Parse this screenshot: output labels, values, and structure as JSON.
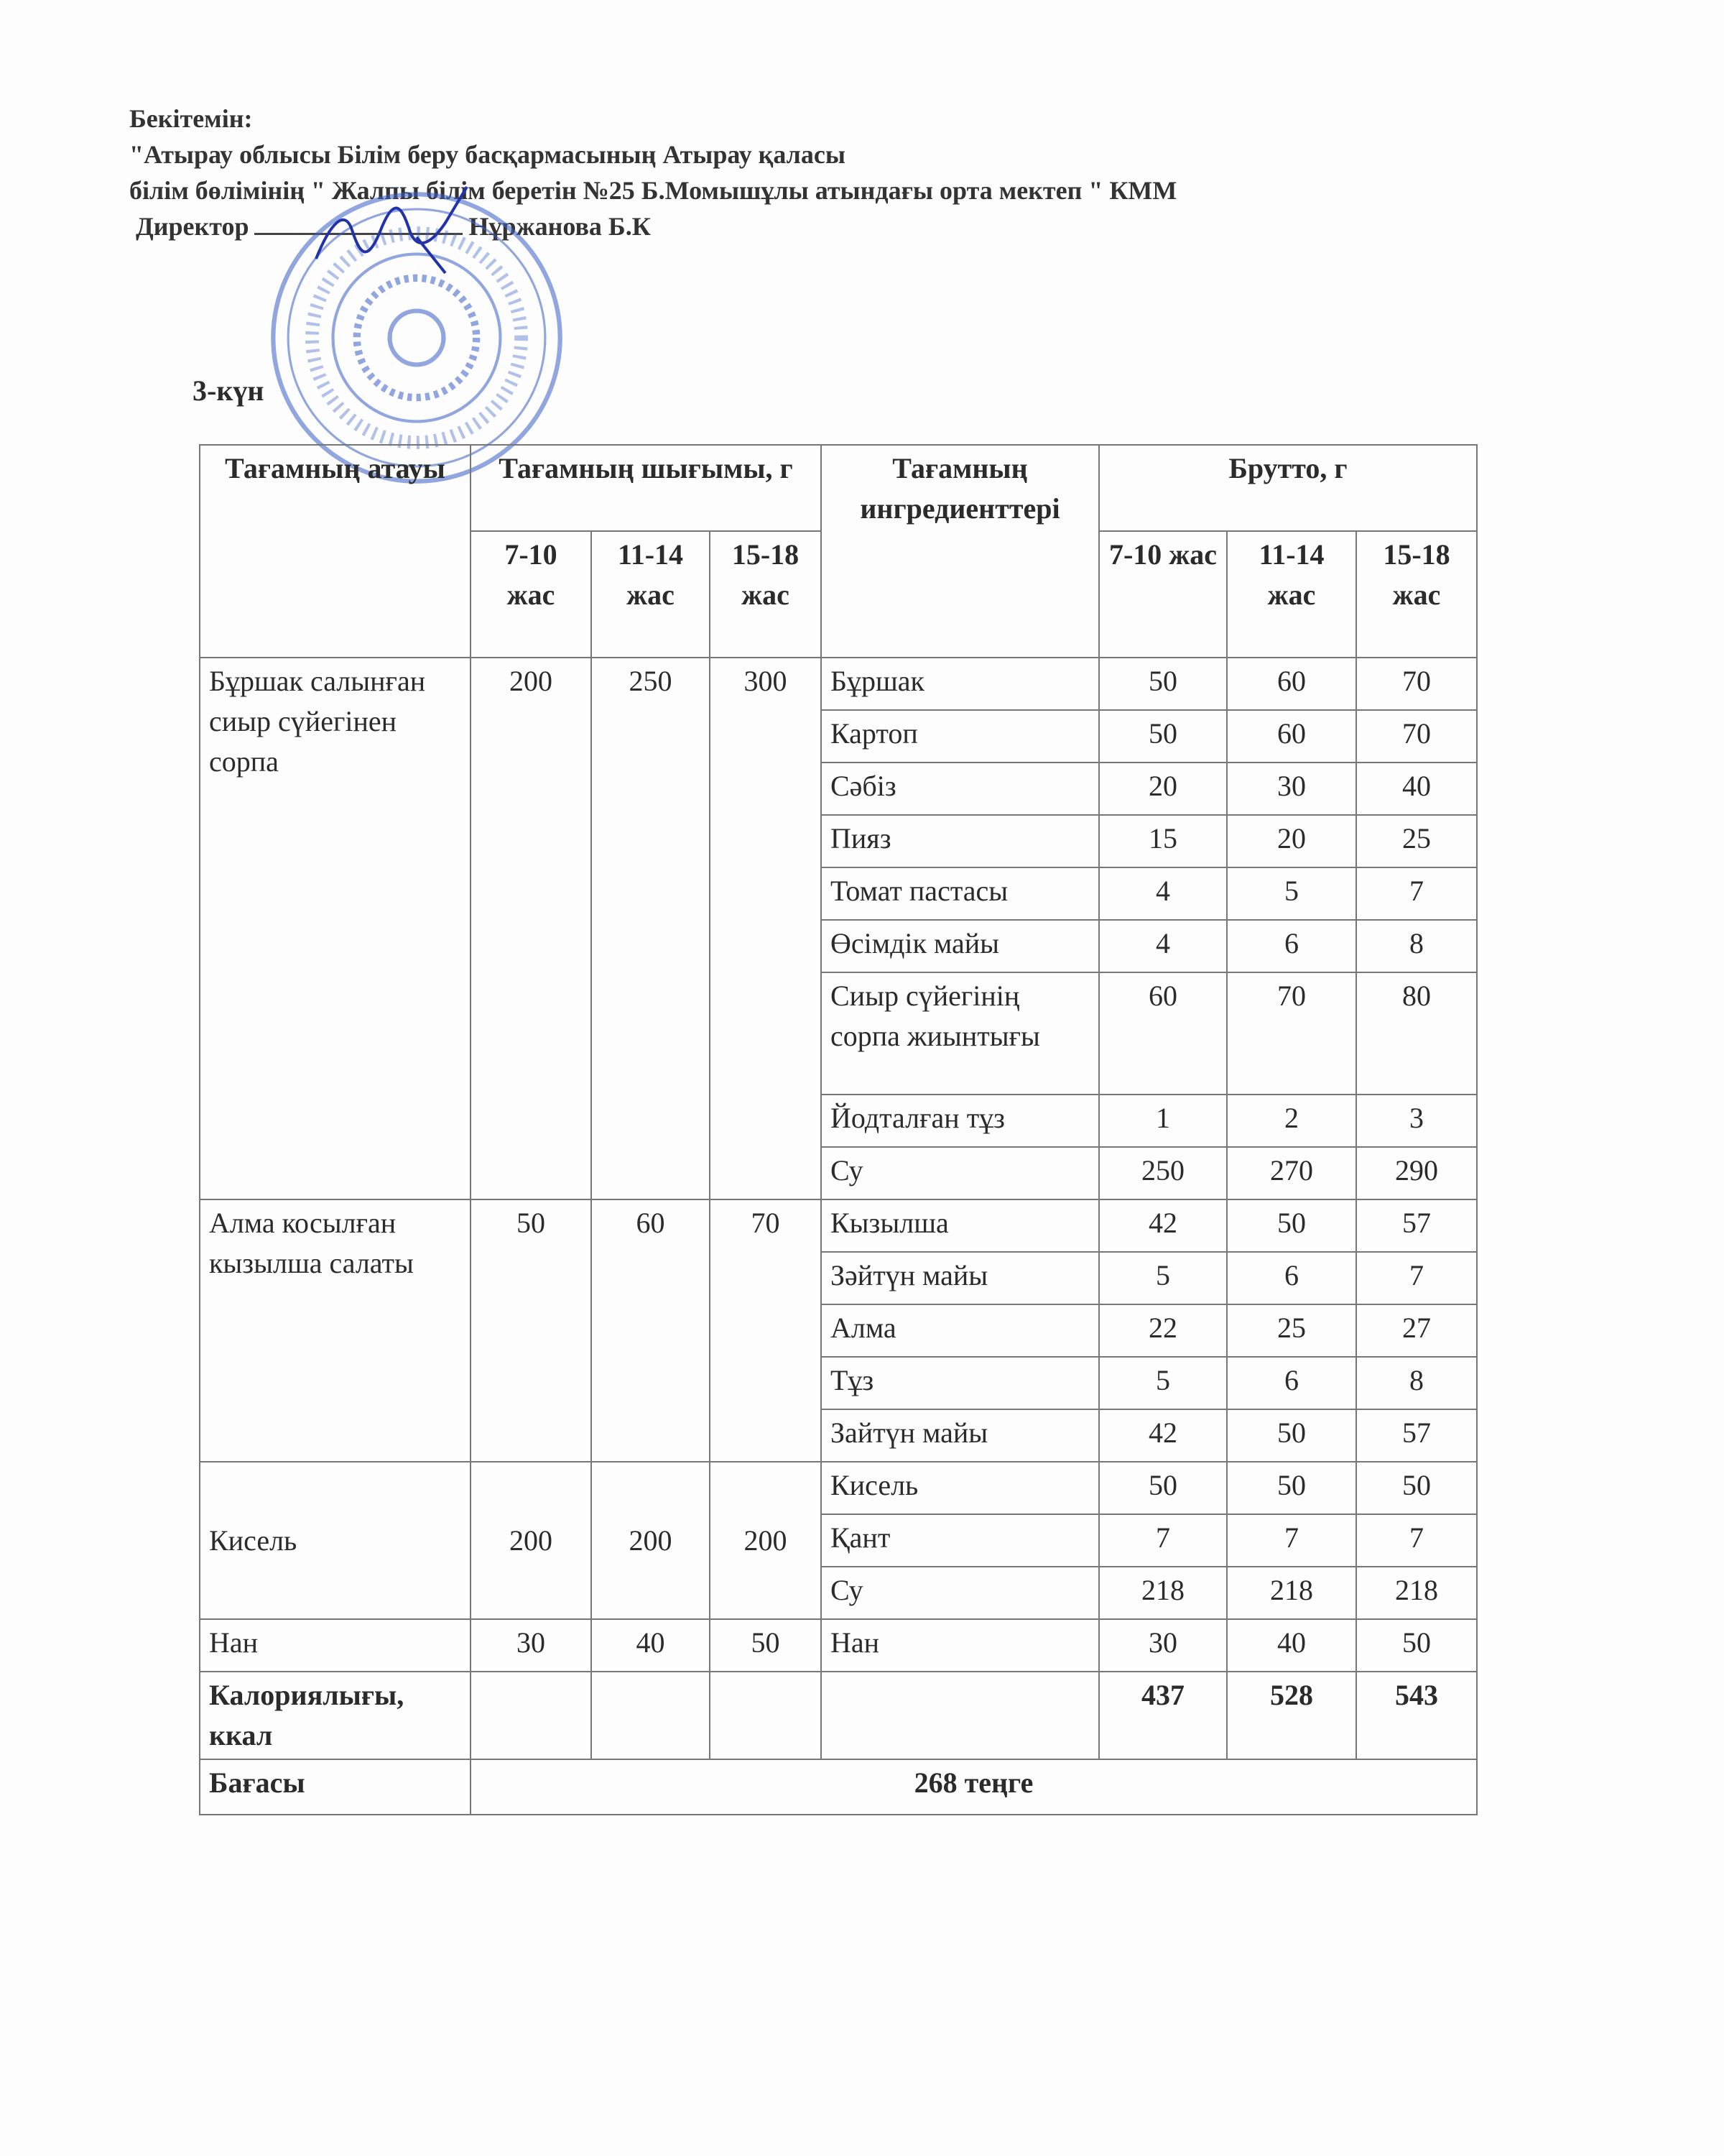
{
  "header": {
    "approve": "Бекітемін:",
    "line1": "\"Атырау облысы Білім беру басқармасының Атырау қаласы",
    "line2": "білім бөлімінің \" Жалпы білім беретін №25 Б.Момышұлы атындағы орта мектеп \" КММ",
    "director_label": "Директор",
    "director_name": "Нұржанова Б.К"
  },
  "day": "3-күн",
  "table": {
    "col_dish": "Тағамның атауы",
    "col_yield": "Тағамның шығымы, г",
    "col_ingredients": "Тағамның ингредиенттері",
    "col_brutto": "Брутто, г",
    "yield_ages": [
      "7-10 жас",
      "11-14 жас",
      "15-18 жас"
    ],
    "brutto_ages": [
      "7-10 жас",
      "11-14 жас",
      "15-18 жас"
    ],
    "dishes": [
      {
        "name": "Бұршак салынған сиыр сүйегінен сорпа",
        "yield": [
          "200",
          "250",
          "300"
        ],
        "ingredients": [
          {
            "name": "Бұршак",
            "v": [
              "50",
              "60",
              "70"
            ]
          },
          {
            "name": "Картоп",
            "v": [
              "50",
              "60",
              "70"
            ]
          },
          {
            "name": "Сәбіз",
            "v": [
              "20",
              "30",
              "40"
            ]
          },
          {
            "name": "Пияз",
            "v": [
              "15",
              "20",
              "25"
            ]
          },
          {
            "name": "Томат пастасы",
            "v": [
              "4",
              "5",
              "7"
            ]
          },
          {
            "name": "Өсімдік майы",
            "v": [
              "4",
              "6",
              "8"
            ]
          },
          {
            "name": "Сиыр сүйегінің сорпа жиынтығы",
            "v": [
              "60",
              "70",
              "80"
            ]
          },
          {
            "name": "Йодталған тұз",
            "v": [
              "1",
              "2",
              "3"
            ]
          },
          {
            "name": "Су",
            "v": [
              "250",
              "270",
              "290"
            ]
          }
        ]
      },
      {
        "name": "Алма косылған кызылша салаты",
        "yield": [
          "50",
          "60",
          "70"
        ],
        "ingredients": [
          {
            "name": "Кызылша",
            "v": [
              "42",
              "50",
              "57"
            ]
          },
          {
            "name": "Зәйтүн майы",
            "v": [
              "5",
              "6",
              "7"
            ]
          },
          {
            "name": "Алма",
            "v": [
              "22",
              "25",
              "27"
            ]
          },
          {
            "name": "Тұз",
            "v": [
              "5",
              "6",
              "8"
            ]
          },
          {
            "name": "Зайтүн майы",
            "v": [
              "42",
              "50",
              "57"
            ]
          }
        ]
      },
      {
        "name": "Кисель",
        "yield": [
          "200",
          "200",
          "200"
        ],
        "ingredients": [
          {
            "name": "Кисель",
            "v": [
              "50",
              "50",
              "50"
            ]
          },
          {
            "name": "Қант",
            "v": [
              "7",
              "7",
              "7"
            ]
          },
          {
            "name": "Су",
            "v": [
              "218",
              "218",
              "218"
            ]
          }
        ]
      },
      {
        "name": "Нан",
        "yield": [
          "30",
          "40",
          "50"
        ],
        "ingredients": [
          {
            "name": "Нан",
            "v": [
              "30",
              "40",
              "50"
            ]
          }
        ]
      }
    ],
    "calories_label": "Калориялығы, ккал",
    "calories": [
      "437",
      "528",
      "543"
    ],
    "price_label": "Бағасы",
    "price": "268 теңге"
  },
  "stamp_color": "#3a5fc8"
}
